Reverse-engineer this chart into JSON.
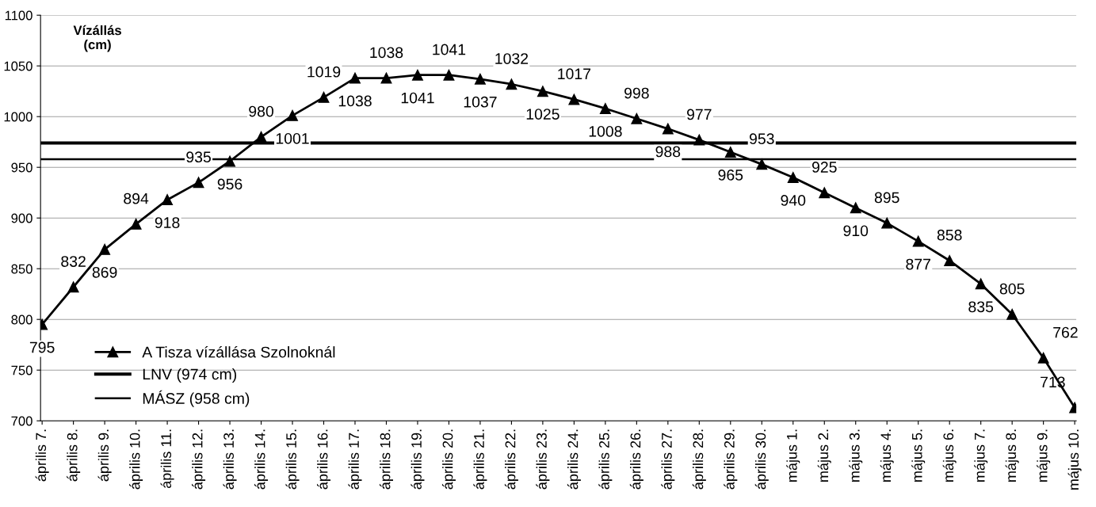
{
  "chart_data": {
    "type": "line",
    "categories": [
      "április 7.",
      "április 8.",
      "április 9.",
      "április 10.",
      "április 11.",
      "április 12.",
      "április 13.",
      "április 14.",
      "április 15.",
      "április 16.",
      "április 17.",
      "április 18.",
      "április 19.",
      "április 20.",
      "április 21.",
      "április 22.",
      "április 23.",
      "április 24.",
      "április 25.",
      "április 26.",
      "április 27.",
      "április 28.",
      "április 29.",
      "április 30.",
      "május 1.",
      "május 2.",
      "május 3.",
      "május 4.",
      "május 5.",
      "május 6.",
      "május 7.",
      "május 8.",
      "május 9.",
      "május 10."
    ],
    "series": [
      {
        "name": "A Tisza vízállása Szolnoknál",
        "color": "#000000",
        "values": [
          795,
          832,
          869,
          894,
          918,
          935,
          956,
          980,
          1001,
          1019,
          1038,
          1038,
          1041,
          1041,
          1037,
          1032,
          1025,
          1017,
          1008,
          998,
          988,
          977,
          965,
          953,
          940,
          925,
          910,
          895,
          877,
          858,
          835,
          805,
          762,
          713
        ]
      }
    ],
    "ref_lines": [
      {
        "axis": "y",
        "value": 974,
        "label": "LNV (974 cm)",
        "color": "#000000"
      },
      {
        "axis": "y",
        "value": 958,
        "label": "MÁSZ (958 cm)",
        "color": "#000000"
      }
    ],
    "annotations": [
      "Vízállás\n(cm)"
    ],
    "ylim": [
      700,
      1100
    ],
    "yticks": [
      700,
      750,
      800,
      850,
      900,
      950,
      1000,
      1050,
      1100
    ],
    "grid": "y",
    "legend": "bottom left",
    "marker": "triangle",
    "line_style": "solid",
    "data_labels": true
  }
}
